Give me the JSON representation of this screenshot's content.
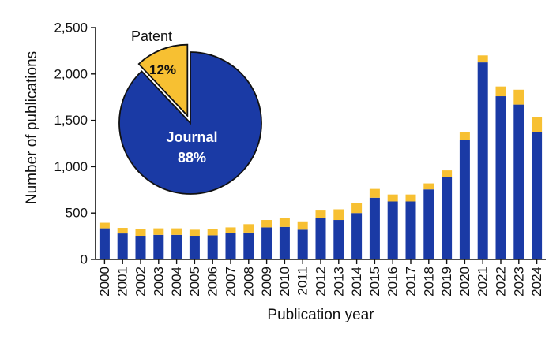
{
  "chart_data": [
    {
      "type": "bar",
      "stacked": true,
      "xlabel": "Publication year",
      "ylabel": "Number of publications",
      "ylim": [
        0,
        2500
      ],
      "yticks": [
        0,
        500,
        1000,
        1500,
        2000,
        2500
      ],
      "ytick_labels": [
        "0",
        "500",
        "1,000",
        "1,500",
        "2,000",
        "2,500"
      ],
      "grid": false,
      "categories": [
        "2000",
        "2001",
        "2002",
        "2003",
        "2004",
        "2005",
        "2006",
        "2007",
        "2008",
        "2009",
        "2010",
        "2011",
        "2012",
        "2013",
        "2014",
        "2015",
        "2016",
        "2017",
        "2018",
        "2019",
        "2020",
        "2021",
        "2022",
        "2023",
        "2024"
      ],
      "series": [
        {
          "name": "Journal",
          "color": "#1a3aa5",
          "values": [
            335,
            280,
            255,
            265,
            265,
            255,
            260,
            285,
            290,
            345,
            350,
            320,
            445,
            425,
            500,
            665,
            625,
            625,
            755,
            885,
            1290,
            2125,
            1760,
            1670,
            1375
          ]
        },
        {
          "name": "Patent",
          "color": "#f7c032",
          "values": [
            60,
            60,
            70,
            70,
            70,
            65,
            65,
            60,
            90,
            80,
            100,
            90,
            90,
            115,
            110,
            95,
            75,
            75,
            65,
            75,
            80,
            75,
            105,
            160,
            160
          ]
        }
      ]
    },
    {
      "type": "pie",
      "slices": [
        {
          "name": "Journal",
          "value": 88,
          "label_line1": "Journal",
          "label_line2": "88%",
          "color": "#1a3aa5"
        },
        {
          "name": "Patent",
          "value": 12,
          "label": "12%",
          "outer_label": "Patent",
          "color": "#f7c032"
        }
      ]
    }
  ]
}
